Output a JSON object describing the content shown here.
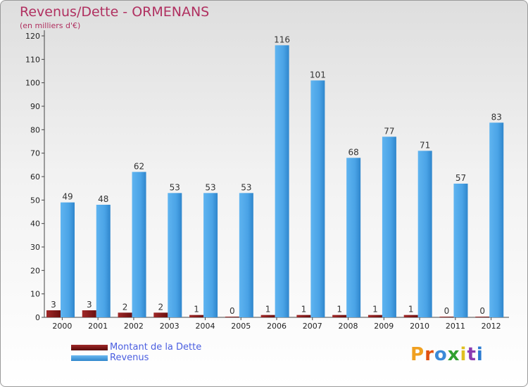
{
  "header": {
    "title": "Revenus/Dette - ORMENANS",
    "subtitle": "(en milliers d'€)"
  },
  "legend": {
    "debt_label": "Montant de la Dette",
    "revenue_label": "Revenus"
  },
  "logo": {
    "letters": [
      "P",
      "r",
      "o",
      "x",
      "i",
      "t",
      "i"
    ],
    "colors": [
      "#f0a020",
      "#e05010",
      "#3a8ad8",
      "#30a030",
      "#e0c020",
      "#8a3ab0",
      "#2a7ad0"
    ]
  },
  "colors": {
    "debt": "#8b1a1a",
    "revenue": "#4aa3e6"
  },
  "chart_data": {
    "type": "bar",
    "title": "Revenus/Dette - ORMENANS",
    "subtitle": "(en milliers d'€)",
    "categories": [
      "2000",
      "2001",
      "2002",
      "2003",
      "2004",
      "2005",
      "2006",
      "2007",
      "2008",
      "2009",
      "2010",
      "2011",
      "2012"
    ],
    "series": [
      {
        "name": "Montant de la Dette",
        "values": [
          3,
          3,
          2,
          2,
          1,
          0,
          1,
          1,
          1,
          1,
          1,
          0,
          0
        ]
      },
      {
        "name": "Revenus",
        "values": [
          49,
          48,
          62,
          53,
          53,
          53,
          116,
          101,
          68,
          77,
          71,
          57,
          83
        ]
      }
    ],
    "yticks": [
      "0",
      "10",
      "20",
      "30",
      "40",
      "50",
      "60",
      "70",
      "80",
      "90",
      "100",
      "110",
      "120"
    ],
    "ylim": [
      0,
      120
    ],
    "grid": false,
    "legend_position": "bottom-left"
  }
}
